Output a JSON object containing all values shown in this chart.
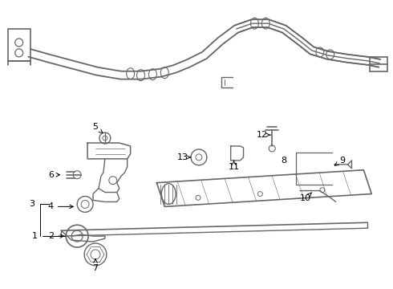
{
  "bg_color": "#ffffff",
  "line_color": "#666666",
  "label_color": "#000000",
  "lw": 1.0
}
